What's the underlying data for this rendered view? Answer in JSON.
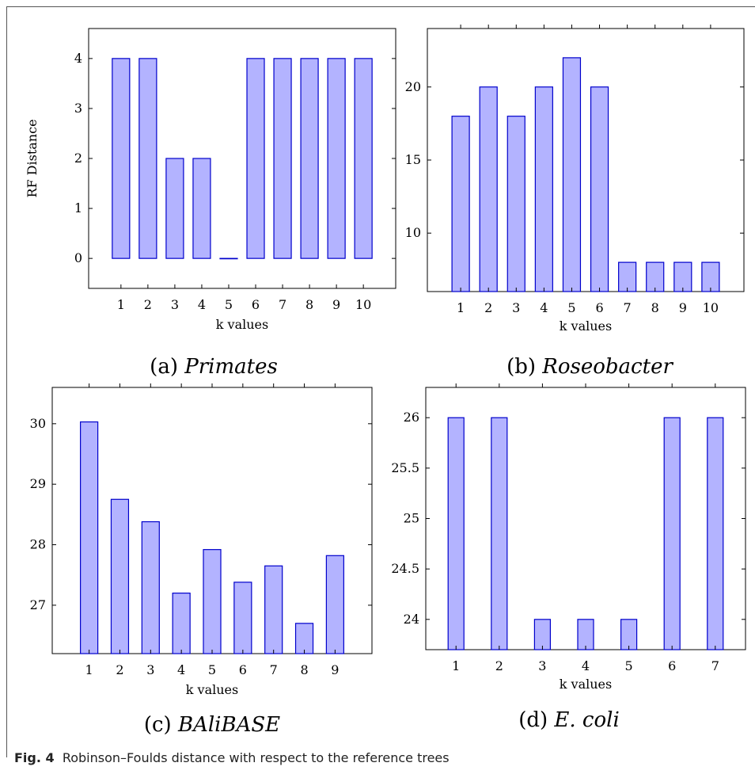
{
  "figure": {
    "caption_label": "Fig. 4",
    "caption_text": "Robinson–Foulds distance with respect to the reference trees"
  },
  "subcaptions": [
    {
      "prefix": "(a)",
      "name": "Primates"
    },
    {
      "prefix": "(b)",
      "name": "Roseobacter"
    },
    {
      "prefix": "(c)",
      "name": "BAliBASE"
    },
    {
      "prefix": "(d)",
      "name": "E. coli"
    }
  ],
  "colors": {
    "bar_fill": "#b3b3ff",
    "bar_stroke": "#0000cc"
  },
  "chart_data": [
    {
      "type": "bar",
      "title": "",
      "xlabel": "k values",
      "ylabel": "RF Distance",
      "categories": [
        "1",
        "2",
        "3",
        "4",
        "5",
        "6",
        "7",
        "8",
        "9",
        "10"
      ],
      "values": [
        4,
        4,
        2,
        2,
        0,
        4,
        4,
        4,
        4,
        4
      ],
      "yticks": [
        "0",
        "1",
        "2",
        "3",
        "4"
      ],
      "ytick_values": [
        0,
        1,
        2,
        3,
        4
      ],
      "ylim": [
        -0.6,
        4.6
      ],
      "xlim": [
        -0.2,
        11.2
      ],
      "grid": false
    },
    {
      "type": "bar",
      "title": "",
      "xlabel": "k values",
      "ylabel": "",
      "categories": [
        "1",
        "2",
        "3",
        "4",
        "5",
        "6",
        "7",
        "8",
        "9",
        "10"
      ],
      "values": [
        18,
        20,
        18,
        20,
        22,
        20,
        8,
        8,
        8,
        8
      ],
      "yticks": [
        "10",
        "15",
        "20"
      ],
      "ytick_values": [
        10,
        15,
        20
      ],
      "ylim": [
        6.0,
        24.0
      ],
      "xlim": [
        -0.2,
        11.2
      ],
      "grid": false
    },
    {
      "type": "bar",
      "title": "",
      "xlabel": "k values",
      "ylabel": "",
      "categories": [
        "1",
        "2",
        "3",
        "4",
        "5",
        "6",
        "7",
        "8",
        "9"
      ],
      "values": [
        30.03,
        28.75,
        28.38,
        27.2,
        27.92,
        27.38,
        27.65,
        26.7,
        27.82
      ],
      "yticks": [
        "27",
        "28",
        "29",
        "30"
      ],
      "ytick_values": [
        27,
        28,
        29,
        30
      ],
      "ylim": [
        26.2,
        30.6
      ],
      "xlim": [
        -0.2,
        10.2
      ],
      "grid": false
    },
    {
      "type": "bar",
      "title": "",
      "xlabel": "k values",
      "ylabel": "",
      "categories": [
        "1",
        "2",
        "3",
        "4",
        "5",
        "6",
        "7"
      ],
      "values": [
        26,
        26,
        24,
        24,
        24,
        26,
        26
      ],
      "yticks": [
        "24",
        "24.5",
        "25",
        "25.5",
        "26"
      ],
      "ytick_values": [
        24,
        24.5,
        25,
        25.5,
        26
      ],
      "ylim": [
        23.7,
        26.3
      ],
      "xlim": [
        0.3,
        7.7
      ],
      "grid": false
    }
  ]
}
